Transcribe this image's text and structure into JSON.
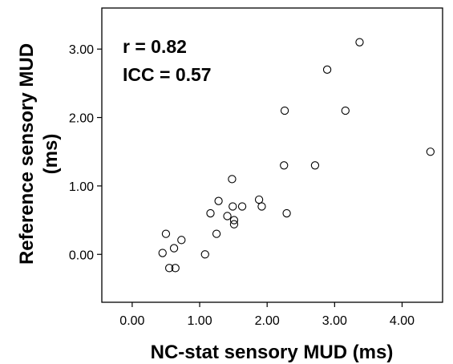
{
  "chart_data": {
    "type": "scatter",
    "xlabel": "NC-stat sensory MUD (ms)",
    "ylabel_lines": [
      "Reference sensory MUD",
      "(ms)"
    ],
    "xlim": [
      -0.45,
      4.6
    ],
    "ylim": [
      -0.7,
      3.6
    ],
    "x_ticks": [
      0,
      1,
      2,
      3,
      4
    ],
    "x_tick_labels": [
      "0.00",
      "1.00",
      "2.00",
      "3.00",
      "4.00"
    ],
    "y_ticks": [
      0,
      1,
      2,
      3
    ],
    "y_tick_labels": [
      "0.00",
      "1.00",
      "2.00",
      "3.00"
    ],
    "grid": false,
    "marker": "open-circle",
    "annotations": [
      "r = 0.82",
      "ICC = 0.57"
    ],
    "points": [
      {
        "x": 0.45,
        "y": 0.02
      },
      {
        "x": 0.5,
        "y": 0.3
      },
      {
        "x": 0.55,
        "y": -0.2
      },
      {
        "x": 0.62,
        "y": 0.09
      },
      {
        "x": 0.64,
        "y": -0.2
      },
      {
        "x": 0.73,
        "y": 0.21
      },
      {
        "x": 1.08,
        "y": 0.0
      },
      {
        "x": 1.16,
        "y": 0.6
      },
      {
        "x": 1.25,
        "y": 0.3
      },
      {
        "x": 1.28,
        "y": 0.78
      },
      {
        "x": 1.41,
        "y": 0.56
      },
      {
        "x": 1.48,
        "y": 1.1
      },
      {
        "x": 1.49,
        "y": 0.7
      },
      {
        "x": 1.51,
        "y": 0.44
      },
      {
        "x": 1.51,
        "y": 0.5
      },
      {
        "x": 1.63,
        "y": 0.7
      },
      {
        "x": 1.88,
        "y": 0.8
      },
      {
        "x": 1.92,
        "y": 0.7
      },
      {
        "x": 2.25,
        "y": 1.3
      },
      {
        "x": 2.26,
        "y": 2.1
      },
      {
        "x": 2.29,
        "y": 0.6
      },
      {
        "x": 2.71,
        "y": 1.3
      },
      {
        "x": 2.89,
        "y": 2.7
      },
      {
        "x": 3.16,
        "y": 2.1
      },
      {
        "x": 3.37,
        "y": 3.1
      },
      {
        "x": 4.42,
        "y": 1.5
      }
    ]
  }
}
